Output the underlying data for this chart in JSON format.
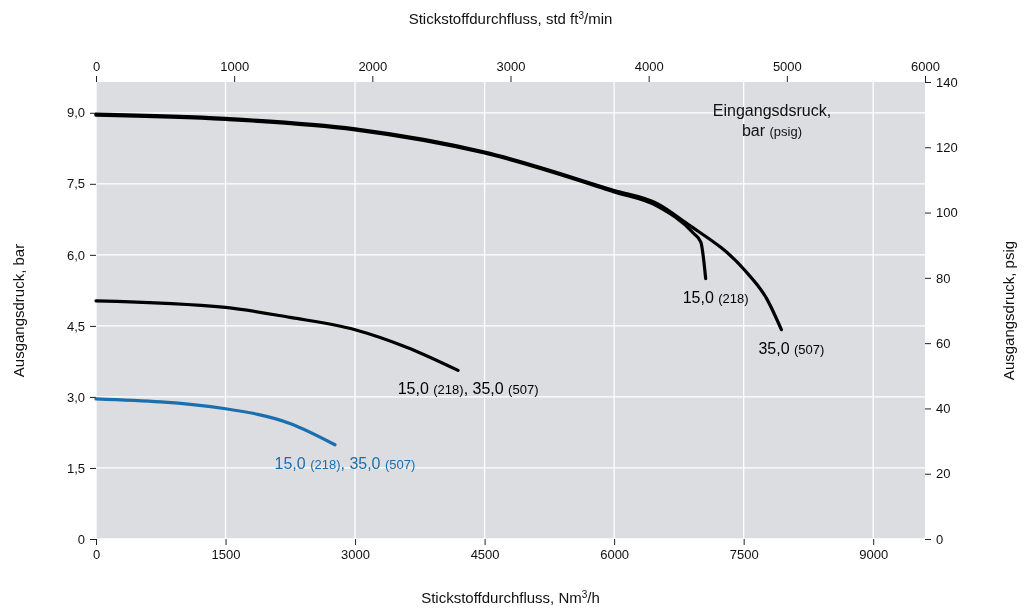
{
  "chart_data": {
    "type": "line",
    "xlabel": "Stickstoffdurchfluss, Nm$^{3}$/h",
    "ylabel": "Ausgangsdruck, bar",
    "y2label": "Ausgangsdruck, psig",
    "x2label": "Stickstoffdurchfluss, std ft$^{3}$/min",
    "xlim": [
      0,
      9600
    ],
    "xticks": [
      0,
      1500,
      3000,
      4500,
      6000,
      7500,
      9000
    ],
    "x2lim": [
      0,
      6000
    ],
    "x2ticks": [
      0,
      1000,
      2000,
      3000,
      4000,
      5000,
      6000
    ],
    "ylim": [
      0,
      9.65
    ],
    "yticks": [
      {
        "value": 0,
        "label": "0"
      },
      {
        "value": 1.5,
        "label": "1,5"
      },
      {
        "value": 3,
        "label": "3,0"
      },
      {
        "value": 4.5,
        "label": "4,5"
      },
      {
        "value": 6,
        "label": "6,0"
      },
      {
        "value": 7.5,
        "label": "7,5"
      },
      {
        "value": 9,
        "label": "9,0"
      }
    ],
    "y2lim": [
      0,
      140
    ],
    "y2ticks": [
      0,
      20,
      40,
      60,
      80,
      100,
      120,
      140
    ],
    "grid": true,
    "line_style": "solid",
    "marker": "none",
    "annotations": [
      "Eingangsdsruck, bar (psig)"
    ],
    "series": [
      {
        "name": "35,0 (507)",
        "color": "#000000",
        "x": [
          0,
          1500,
          3000,
          4500,
          6000,
          6500,
          6828,
          7500,
          7768,
          7937
        ],
        "values": [
          8.97,
          8.88,
          8.66,
          8.17,
          7.36,
          7.08,
          6.68,
          5.7,
          5.07,
          4.42
        ]
      },
      {
        "name": "15,0 (218)",
        "color": "#000000",
        "x": [
          0,
          1500,
          3000,
          4500,
          6000,
          6500,
          6922,
          7004,
          7060
        ],
        "values": [
          8.95,
          8.86,
          8.64,
          8.15,
          7.33,
          7.03,
          6.45,
          6.27,
          5.5
        ]
      },
      {
        "name": "15,0 (218), 35,0 (507)",
        "color": "#000000",
        "x": [
          0,
          1500,
          2246,
          3000,
          3596,
          4193
        ],
        "values": [
          5.03,
          4.89,
          4.68,
          4.42,
          4.05,
          3.56
        ]
      },
      {
        "name": "15,0 (218), 35,0 (507)",
        "color": "#1a6fae",
        "x": [
          0,
          1500,
          2246,
          2767
        ],
        "values": [
          2.96,
          2.75,
          2.44,
          1.99
        ]
      }
    ]
  }
}
